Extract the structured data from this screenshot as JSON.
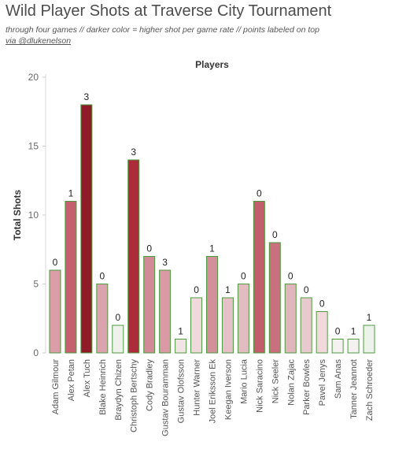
{
  "header": {
    "title": "Wild Player Shots at Traverse City Tournament",
    "subtitle": "through four games // darker color = higher shot per game rate // points labeled on top",
    "credit": "via @dlukenelson"
  },
  "chart_data": {
    "type": "bar",
    "title": "Wild Player Shots at Traverse City Tournament",
    "subtitle": "through four games // darker color = higher shot per game rate // points labeled on top",
    "xlabel": "Players",
    "ylabel": "Total Shots",
    "ylim": [
      0,
      20
    ],
    "yticks": [
      0,
      5,
      10,
      15,
      20
    ],
    "grid": false,
    "categories": [
      "Adam Gilmour",
      "Alex Petan",
      "Alex Tuch",
      "Blake Heinrich",
      "Braydyn Chizen",
      "Christoph Bertschy",
      "Cody Bradley",
      "Gustav Bouramman",
      "Gustav Olofsson",
      "Hunter Warner",
      "Joel Eriksson Ek",
      "Keegan Iverson",
      "Mario Lucia",
      "Nick Saracino",
      "Nick Seeler",
      "Nolan Zajac",
      "Parker Bowles",
      "Pavel Jenys",
      "Sam Anas",
      "Tanner Jeannot",
      "Zach Schroeder"
    ],
    "series": [
      {
        "values": [
          6,
          11,
          18,
          5,
          2,
          14,
          7,
          6,
          1,
          4,
          7,
          4,
          5,
          11,
          8,
          5,
          4,
          3,
          1,
          1,
          2
        ]
      }
    ],
    "points_labels": [
      0,
      1,
      3,
      0,
      0,
      3,
      0,
      3,
      1,
      0,
      1,
      1,
      0,
      0,
      0,
      0,
      0,
      0,
      0,
      1,
      1
    ],
    "colors": [
      "#db9da8",
      "#c6606e",
      "#8e1b27",
      "#dba3ad",
      "#eef2ea",
      "#ad2c3b",
      "#d28a96",
      "#d99aa5",
      "#f2e4e5",
      "#efd9dc",
      "#d38f9a",
      "#e5c0c6",
      "#e3bcc2",
      "#c25e6b",
      "#c8707e",
      "#e0b5bc",
      "#e8c9ce",
      "#f0d8db",
      "#f5f1f0",
      "#f5f1f0",
      "#edf2ea"
    ],
    "bar_border_color": "#4d9a3f"
  }
}
